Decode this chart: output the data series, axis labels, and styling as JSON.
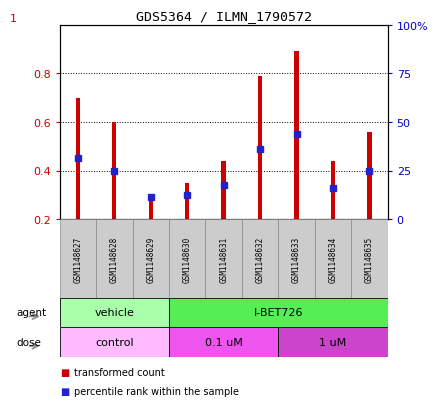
{
  "title": "GDS5364 / ILMN_1790572",
  "samples": [
    "GSM1148627",
    "GSM1148628",
    "GSM1148629",
    "GSM1148630",
    "GSM1148631",
    "GSM1148632",
    "GSM1148633",
    "GSM1148634",
    "GSM1148635"
  ],
  "transformed_count": [
    0.7,
    0.6,
    0.29,
    0.35,
    0.44,
    0.79,
    0.89,
    0.44,
    0.56
  ],
  "percentile_rank": [
    0.45,
    0.4,
    0.29,
    0.3,
    0.34,
    0.49,
    0.55,
    0.33,
    0.4
  ],
  "bar_bottom": 0.2,
  "ylim": [
    0.2,
    1.0
  ],
  "y2lim": [
    0,
    100
  ],
  "yticks": [
    0.2,
    0.4,
    0.6,
    0.8
  ],
  "ytick_labels": [
    "0.2",
    "0.4",
    "0.6",
    "0.8"
  ],
  "ytop_label": "1",
  "y2ticks": [
    0,
    25,
    50,
    75,
    100
  ],
  "y2tick_labels": [
    "0",
    "25",
    "50",
    "75",
    "100%"
  ],
  "red_color": "#cc0000",
  "blue_color": "#2222cc",
  "agent_groups": [
    {
      "label": "vehicle",
      "start": 0,
      "end": 3,
      "color": "#aaffaa"
    },
    {
      "label": "I-BET726",
      "start": 3,
      "end": 9,
      "color": "#55ee55"
    }
  ],
  "dose_groups": [
    {
      "label": "control",
      "start": 0,
      "end": 3,
      "color": "#ffbbff"
    },
    {
      "label": "0.1 uM",
      "start": 3,
      "end": 6,
      "color": "#ee55ee"
    },
    {
      "label": "1 uM",
      "start": 6,
      "end": 9,
      "color": "#cc44cc"
    }
  ],
  "legend_items": [
    {
      "label": "transformed count",
      "color": "#cc0000"
    },
    {
      "label": "percentile rank within the sample",
      "color": "#2222cc"
    }
  ],
  "bar_width": 0.12,
  "tick_label_color": "#cc0000",
  "tick2_label_color": "#0000cc"
}
